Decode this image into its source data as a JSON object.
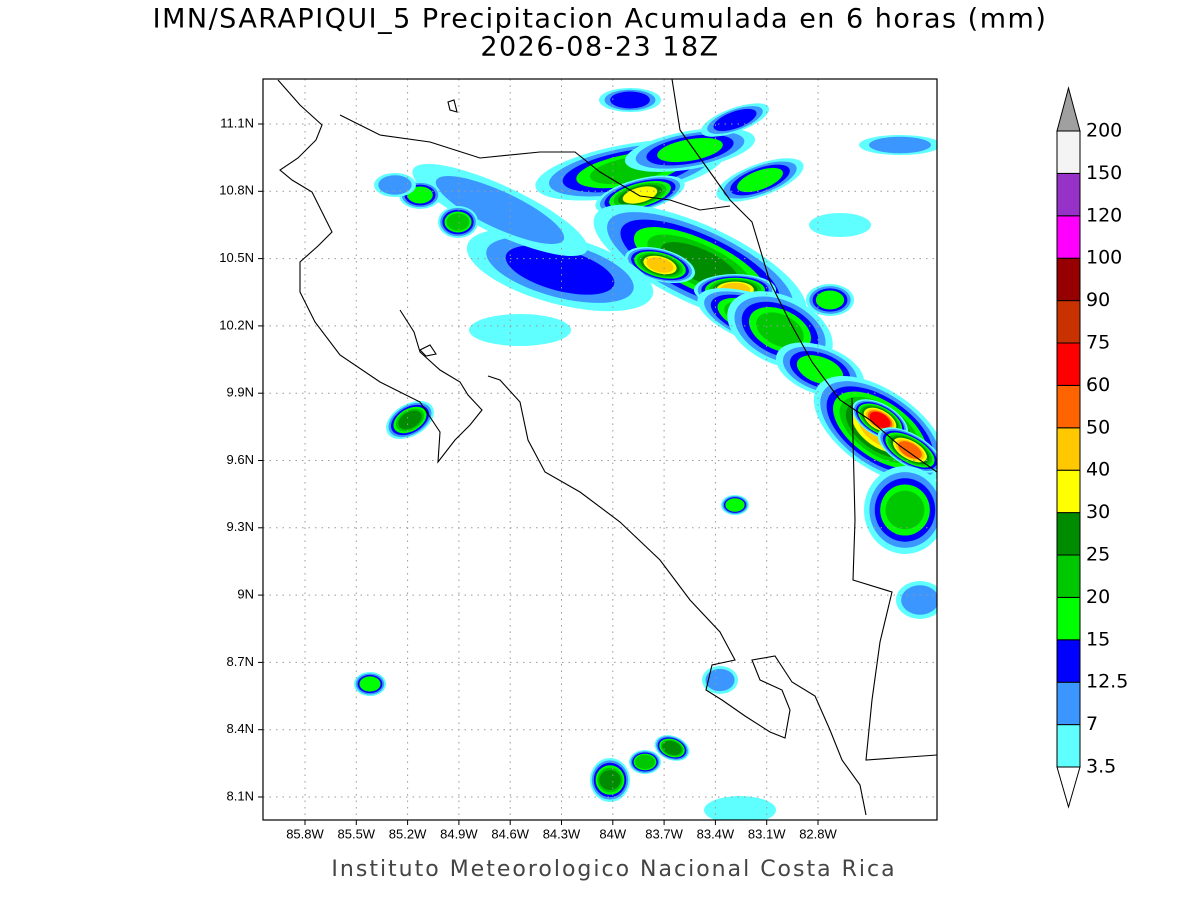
{
  "header": {
    "title": "IMN/SARAPIQUI_5 Precipitacion Acumulada en 6 horas (mm)",
    "subtitle": "2026-08-23 18Z"
  },
  "map": {
    "xticks": [
      "85.8W",
      "85.5W",
      "85.2W",
      "84.9W",
      "84.6W",
      "84.3W",
      "84W",
      "83.7W",
      "83.4W",
      "83.1W",
      "82.8W"
    ],
    "yticks": [
      "11.1N",
      "10.8N",
      "10.5N",
      "10.2N",
      "9.9N",
      "9.6N",
      "9.3N",
      "9N",
      "8.7N",
      "8.4N",
      "8.1N"
    ]
  },
  "colorbar": {
    "levels": [
      3.5,
      7,
      12.5,
      15,
      20,
      25,
      30,
      40,
      50,
      60,
      75,
      90,
      100,
      120,
      150,
      200
    ],
    "colors": [
      "#ffffff",
      "#5fffff",
      "#3c96ff",
      "#0000ff",
      "#00ff00",
      "#00c800",
      "#008c00",
      "#ffff00",
      "#ffc800",
      "#ff6400",
      "#ff0000",
      "#c83200",
      "#960000",
      "#ff00ff",
      "#9632c8",
      "#f4f4f4",
      "#a0a0a0"
    ]
  },
  "footer": "Instituto Meteorologico Nacional Costa Rica"
}
